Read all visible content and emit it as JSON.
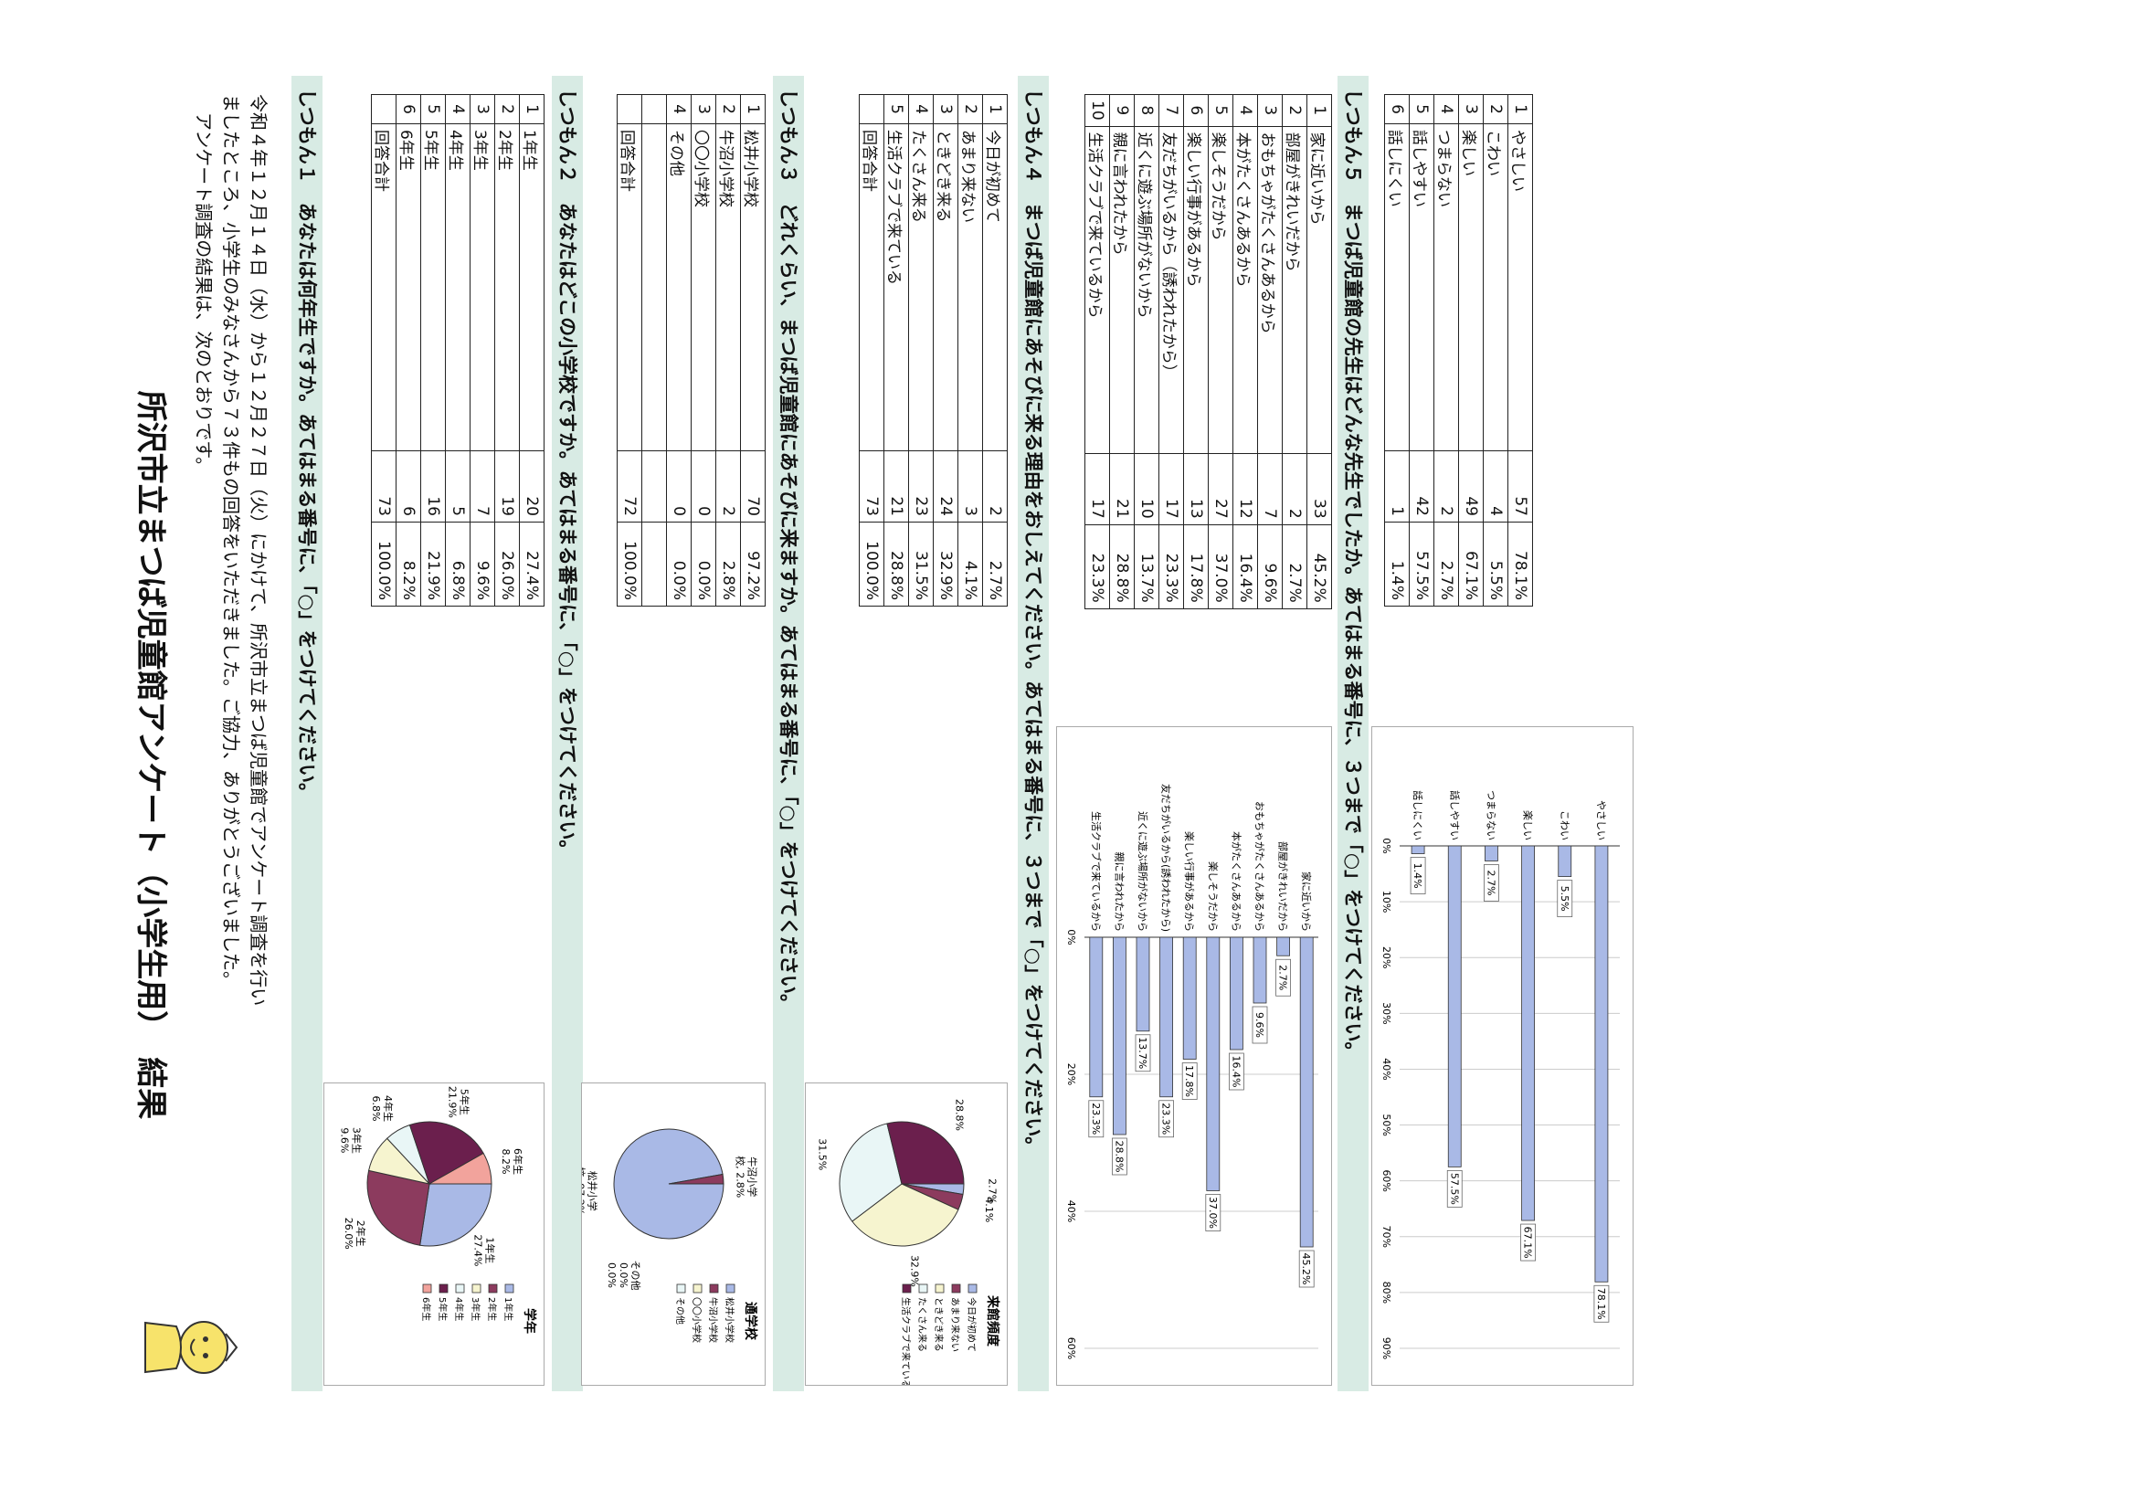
{
  "title": "所沢市立まつば児童館アンケート（小学生用）　結果",
  "intro": [
    "令和４年１２月１４日（水）から１２月２７日（火）にかけて、所沢市立まつば児童館でアンケート調査を行い",
    "ましたところ、小学生のみなさんから７３件もの回答をいただきました。ご協力、ありがとうございました。",
    "アンケート調査の結果は、次のとおりです。"
  ],
  "questions": [
    {
      "heading": "しつもん１　あなたは何年生ですか。あてはまる番号に、「○」をつけてください。",
      "rows": [
        {
          "no": "1",
          "label": "1年生",
          "count": "20",
          "pct": "27.4%"
        },
        {
          "no": "2",
          "label": "2年生",
          "count": "19",
          "pct": "26.0%"
        },
        {
          "no": "3",
          "label": "3年生",
          "count": "7",
          "pct": "9.6%"
        },
        {
          "no": "4",
          "label": "4年生",
          "count": "5",
          "pct": "6.8%"
        },
        {
          "no": "5",
          "label": "5年生",
          "count": "16",
          "pct": "21.9%"
        },
        {
          "no": "6",
          "label": "6年生",
          "count": "6",
          "pct": "8.2%"
        }
      ],
      "total": {
        "label": "回答合計",
        "count": "73",
        "pct": "100.0%"
      }
    },
    {
      "heading": "しつもん２　あなたはどこの小学校ですか。あてはまる番号に、「○」をつけてください。",
      "rows": [
        {
          "no": "1",
          "label": "松井小学校",
          "count": "70",
          "pct": "97.2%"
        },
        {
          "no": "2",
          "label": "牛沼小学校",
          "count": "2",
          "pct": "2.8%"
        },
        {
          "no": "3",
          "label": "〇〇小学校",
          "count": "0",
          "pct": "0.0%"
        },
        {
          "no": "4",
          "label": "その他",
          "count": "0",
          "pct": "0.0%"
        }
      ],
      "total": {
        "label": "回答合計",
        "count": "72",
        "pct": "100.0%"
      }
    },
    {
      "heading": "しつもん３　どれくらい、まつば児童館にあそびに来ますか。あてはまる番号に、「○」をつけてください。",
      "rows": [
        {
          "no": "1",
          "label": "今日が初めて",
          "count": "2",
          "pct": "2.7%"
        },
        {
          "no": "2",
          "label": "あまり来ない",
          "count": "3",
          "pct": "4.1%"
        },
        {
          "no": "3",
          "label": "ときどき来る",
          "count": "24",
          "pct": "32.9%"
        },
        {
          "no": "4",
          "label": "たくさん来る",
          "count": "23",
          "pct": "31.5%"
        },
        {
          "no": "5",
          "label": "生活クラブで来ている",
          "count": "21",
          "pct": "28.8%"
        }
      ],
      "total": {
        "label": "回答合計",
        "count": "73",
        "pct": "100.0%"
      }
    },
    {
      "heading": "しつもん４　まつば児童館にあそびに来る理由をおしえてください。あてはまる番号に、３つまで「○」をつけてください。",
      "rows": [
        {
          "no": "1",
          "label": "家に近いから",
          "count": "33",
          "pct": "45.2%"
        },
        {
          "no": "2",
          "label": "部屋がきれいだから",
          "count": "2",
          "pct": "2.7%"
        },
        {
          "no": "3",
          "label": "おもちゃがたくさんあるから",
          "count": "7",
          "pct": "9.6%"
        },
        {
          "no": "4",
          "label": "本がたくさんあるから",
          "count": "12",
          "pct": "16.4%"
        },
        {
          "no": "5",
          "label": "楽しそうだから",
          "count": "27",
          "pct": "37.0%"
        },
        {
          "no": "6",
          "label": "楽しい行事があるから",
          "count": "13",
          "pct": "17.8%"
        },
        {
          "no": "7",
          "label": "友だちがいるから（誘われたから）",
          "count": "17",
          "pct": "23.3%"
        },
        {
          "no": "8",
          "label": "近くに遊ぶ場所がないから",
          "count": "10",
          "pct": "13.7%"
        },
        {
          "no": "9",
          "label": "親に言われたから",
          "count": "21",
          "pct": "28.8%"
        },
        {
          "no": "10",
          "label": "生活クラブで来ているから",
          "count": "17",
          "pct": "23.3%"
        }
      ]
    },
    {
      "heading": "しつもん５　まつば児童館の先生はどんな先生でしたか。あてはまる番号に、３つまで「○」をつけてください。",
      "rows": [
        {
          "no": "1",
          "label": "やさしい",
          "count": "57",
          "pct": "78.1%"
        },
        {
          "no": "2",
          "label": "こわい",
          "count": "4",
          "pct": "5.5%"
        },
        {
          "no": "3",
          "label": "楽しい",
          "count": "49",
          "pct": "67.1%"
        },
        {
          "no": "4",
          "label": "つまらない",
          "count": "2",
          "pct": "2.7%"
        },
        {
          "no": "5",
          "label": "話しやすい",
          "count": "42",
          "pct": "57.5%"
        },
        {
          "no": "6",
          "label": "話しにくい",
          "count": "1",
          "pct": "1.4%"
        }
      ]
    }
  ],
  "chart_data": [
    {
      "type": "pie",
      "title": "学年",
      "categories": [
        "1年生",
        "2年生",
        "3年生",
        "4年生",
        "5年生",
        "6年生"
      ],
      "values": [
        27.4,
        26.0,
        9.6,
        6.8,
        21.9,
        8.2
      ],
      "slice_labels": [
        "1年生\n27.4%",
        "2年生\n26.0%",
        "3年生\n9.6%",
        "4年生\n6.8%",
        "5年生\n21.9%",
        "6年生\n8.2%"
      ],
      "colors": [
        "#a9b9e6",
        "#8c3b5e",
        "#f6f4cf",
        "#e9f6f6",
        "#6b1f4d",
        "#f2a39c"
      ],
      "legend": "right"
    },
    {
      "type": "pie",
      "title": "通学校",
      "categories": [
        "松井小学校",
        "牛沼小学校",
        "〇〇小学校",
        "その他"
      ],
      "values": [
        97.2,
        2.8,
        0.0,
        0.0
      ],
      "slice_labels": [
        "松井小学\n校, 97.2%",
        "牛沼小学\n校, 2.8%",
        "",
        ""
      ],
      "outside_label": "その他\n0.0%\n0.0%",
      "colors": [
        "#a9b9e6",
        "#8c3b5e",
        "#f6f4cf",
        "#e9f6f6"
      ],
      "legend": "right"
    },
    {
      "type": "pie",
      "title": "来館頻度",
      "categories": [
        "今日が初めて",
        "あまり来ない",
        "ときどき来る",
        "たくさん来る",
        "生活クラブで来ている"
      ],
      "values": [
        2.7,
        4.1,
        32.9,
        31.5,
        28.8
      ],
      "slice_labels": [
        "2.7%",
        "4.1%",
        "32.9%",
        "31.5%",
        "28.8%"
      ],
      "colors": [
        "#a9b9e6",
        "#8c3b5e",
        "#f6f4cf",
        "#e9f6f6",
        "#6b1f4d"
      ],
      "legend": "right"
    },
    {
      "type": "bar",
      "orientation": "horizontal",
      "categories": [
        "家に近いから",
        "部屋がきれいだから",
        "おもちゃがたくさんあるから",
        "本がたくさんあるから",
        "楽しそうだから",
        "楽しい行事があるから",
        "友だちがいるから(誘われたから)",
        "近くに遊ぶ場所がないから",
        "親に言われたから",
        "生活クラブで来ているから"
      ],
      "values": [
        45.2,
        2.7,
        9.6,
        16.4,
        37.0,
        17.8,
        23.3,
        13.7,
        28.8,
        23.3
      ],
      "value_labels": [
        "45.2%",
        "2.7%",
        "9.6%",
        "16.4%",
        "37.0%",
        "17.8%",
        "23.3%",
        "13.7%",
        "28.8%",
        "23.3%"
      ],
      "ticks": [
        "0%",
        "20%",
        "40%",
        "60%"
      ],
      "xlim": [
        0,
        60
      ],
      "color": "#a9b9e6"
    },
    {
      "type": "bar",
      "orientation": "horizontal",
      "categories": [
        "やさしい",
        "こわい",
        "楽しい",
        "つまらない",
        "話しやすい",
        "話しにくい"
      ],
      "values": [
        78.1,
        5.5,
        67.1,
        2.7,
        57.5,
        1.4
      ],
      "value_labels": [
        "78.1%",
        "5.5%",
        "67.1%",
        "2.7%",
        "57.5%",
        "1.4%"
      ],
      "ticks": [
        "0%",
        "10%",
        "20%",
        "30%",
        "40%",
        "50%",
        "60%",
        "70%",
        "80%",
        "90%"
      ],
      "xlim": [
        0,
        90
      ],
      "color": "#a9b9e6"
    }
  ]
}
